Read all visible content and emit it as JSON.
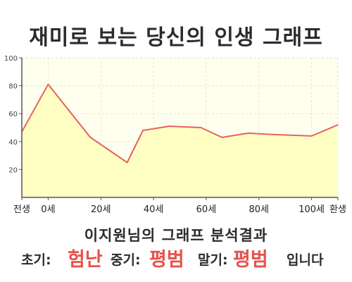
{
  "chart_data": {
    "type": "area",
    "title": "재미로 보는 당신의 인생 그래프",
    "ylim": [
      0,
      100
    ],
    "yticks": [
      20,
      40,
      60,
      80,
      100
    ],
    "xlim": [
      -10,
      110
    ],
    "xticks": [
      {
        "x": -10,
        "label": "전생"
      },
      {
        "x": 0,
        "label": "0세"
      },
      {
        "x": 20,
        "label": "20세"
      },
      {
        "x": 40,
        "label": "40세"
      },
      {
        "x": 60,
        "label": "60세"
      },
      {
        "x": 80,
        "label": "80세"
      },
      {
        "x": 100,
        "label": "100세"
      },
      {
        "x": 110,
        "label": "환생"
      }
    ],
    "grid": true,
    "series": [
      {
        "x": [
          -10,
          0,
          16,
          30,
          36,
          46,
          58,
          66,
          76,
          86,
          100,
          110
        ],
        "y": [
          47,
          81,
          43,
          25,
          48,
          51,
          50,
          43,
          46,
          45,
          44,
          52
        ]
      }
    ],
    "colors": {
      "line": "#e8625a",
      "fill": "#ffffc4",
      "plot_bg": "#fffff0",
      "grid": "#e3e3d0",
      "axis": "#555555"
    }
  },
  "result": {
    "heading": "이지원님의 그래프 분석결과",
    "early_label": "초기:",
    "early_value": "험난",
    "mid_label": "중기:",
    "mid_value": "평범",
    "late_label": "말기:",
    "late_value": "평범",
    "suffix": "입니다"
  }
}
